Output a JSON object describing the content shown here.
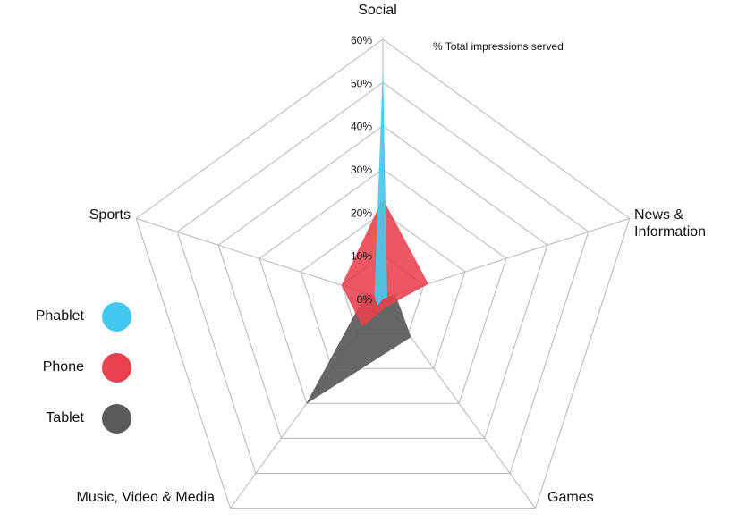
{
  "chart_data": {
    "type": "radar",
    "title": "",
    "note": "% Total impressions served",
    "axes": [
      "Social",
      "News & Information",
      "Games",
      "Music, Video & Media",
      "Sports"
    ],
    "axis_label_lines": [
      [
        "Social"
      ],
      [
        "News &",
        "Information"
      ],
      [
        "Games"
      ],
      [
        "Music, Video & Media"
      ],
      [
        "Sports"
      ]
    ],
    "rlim": [
      0,
      60
    ],
    "ticks": [
      "0%",
      "10%",
      "20%",
      "30%",
      "40%",
      "50%",
      "60%"
    ],
    "tick_values": [
      0,
      10,
      20,
      30,
      40,
      50,
      60
    ],
    "grid": true,
    "legend_position": "left",
    "series": [
      {
        "name": "Tablet",
        "color": "#5a5a5a",
        "opacity": 0.92,
        "values": [
          0,
          3,
          11,
          30,
          4
        ]
      },
      {
        "name": "Phone",
        "color": "#e8414e",
        "opacity": 0.88,
        "values": [
          23,
          11,
          2,
          8,
          10
        ]
      },
      {
        "name": "Phablet",
        "color": "#45c8f0",
        "opacity": 0.9,
        "values": [
          52,
          1,
          0,
          2,
          2
        ]
      }
    ]
  },
  "legend": [
    {
      "label": "Phablet",
      "color": "#45c8f0"
    },
    {
      "label": "Phone",
      "color": "#e8414e"
    },
    {
      "label": "Tablet",
      "color": "#5a5a5a"
    }
  ]
}
